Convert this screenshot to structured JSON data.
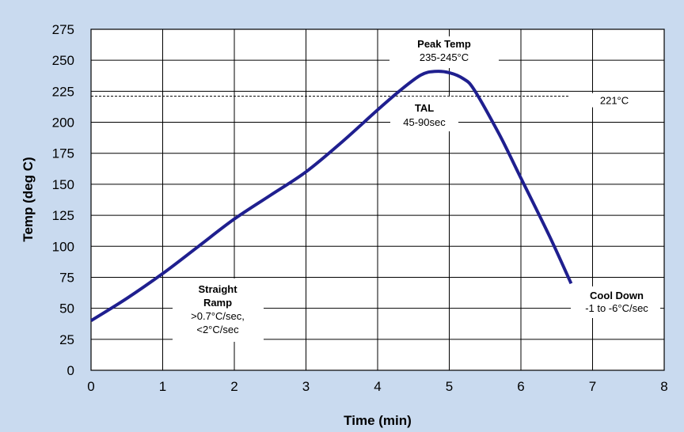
{
  "chart_data": {
    "type": "line",
    "xlabel": "Time (min)",
    "ylabel": "Temp (deg C)",
    "xlim": [
      0,
      8
    ],
    "ylim": [
      0,
      275
    ],
    "x_ticks": [
      0,
      1,
      2,
      3,
      4,
      5,
      6,
      7,
      8
    ],
    "y_ticks": [
      0,
      25,
      50,
      75,
      100,
      125,
      150,
      175,
      200,
      225,
      250,
      275
    ],
    "grid": true,
    "reference_line": {
      "y": 221,
      "label": "221°C",
      "style": "dashed"
    },
    "series": [
      {
        "color": "#1f1f8f",
        "points": [
          [
            0,
            40
          ],
          [
            0.5,
            58
          ],
          [
            1,
            78
          ],
          [
            1.5,
            100
          ],
          [
            2,
            122
          ],
          [
            2.5,
            141
          ],
          [
            3,
            160
          ],
          [
            3.5,
            184
          ],
          [
            4,
            210
          ],
          [
            4.3,
            225
          ],
          [
            4.6,
            238
          ],
          [
            4.8,
            241
          ],
          [
            5.0,
            240
          ],
          [
            5.2,
            235
          ],
          [
            5.35,
            226
          ],
          [
            5.7,
            190
          ],
          [
            6.0,
            155
          ],
          [
            6.4,
            108
          ],
          [
            6.7,
            70
          ]
        ]
      }
    ],
    "annotations": [
      {
        "id": "peak",
        "lines": [
          "Peak Temp",
          "235-245°C"
        ]
      },
      {
        "id": "tal",
        "lines": [
          "TAL",
          "45-90sec"
        ]
      },
      {
        "id": "ramp",
        "lines": [
          "Straight",
          "Ramp",
          ">0.7°C/sec,",
          "<2°C/sec"
        ]
      },
      {
        "id": "cool",
        "lines": [
          "Cool Down",
          "-1 to -6°C/sec"
        ]
      }
    ]
  }
}
